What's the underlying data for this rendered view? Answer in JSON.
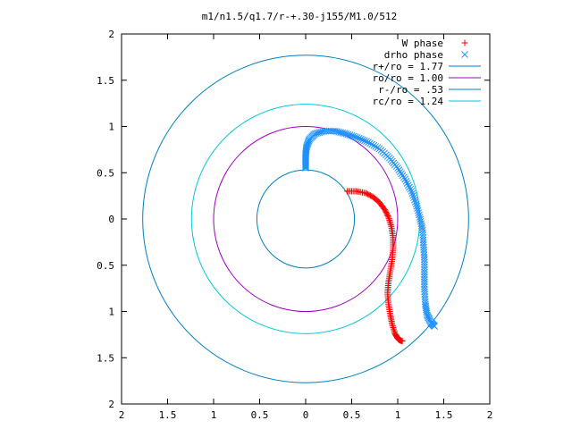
{
  "chart_data": {
    "type": "scatter",
    "title": "m1/n1.5/q1.7/r-+.30-j155/M1.0/512",
    "xlabel": "",
    "ylabel": "",
    "xlim": [
      -2,
      2
    ],
    "ylim": [
      -2,
      2
    ],
    "x_reversed": true,
    "y_ticks_show_abs": true,
    "x_ticks": [
      -2,
      -1.5,
      -1,
      -0.5,
      0,
      0.5,
      1,
      1.5,
      2
    ],
    "x_tick_labels": [
      "2",
      "1.5",
      "1",
      "0.5",
      "0",
      "0.5",
      "1",
      "1.5",
      "2"
    ],
    "y_ticks": [
      2,
      1.5,
      1,
      0.5,
      0,
      -0.5,
      -1,
      -1.5,
      -2
    ],
    "y_tick_labels": [
      "2",
      "1.5",
      "1",
      "0.5",
      "0",
      "0.5",
      "1",
      "1.5",
      "2"
    ],
    "grid": false,
    "legend_position": "top-right",
    "colors": {
      "w_phase": "#ff0000",
      "drho_phase": "#1e90ff",
      "rplus": "#0080c0",
      "ro": "#a000c0",
      "rminus": "#0080c0",
      "rc": "#00c8d8"
    },
    "series": [
      {
        "name": "W phase",
        "kind": "points",
        "marker": "plus",
        "points": [
          [
            -0.45,
            0.3
          ],
          [
            -0.55,
            0.3
          ],
          [
            -0.65,
            0.28
          ],
          [
            -0.73,
            0.24
          ],
          [
            -0.8,
            0.18
          ],
          [
            -0.86,
            0.1
          ],
          [
            -0.9,
            0.02
          ],
          [
            -0.93,
            -0.08
          ],
          [
            -0.95,
            -0.2
          ],
          [
            -0.95,
            -0.32
          ],
          [
            -0.94,
            -0.44
          ],
          [
            -0.92,
            -0.56
          ],
          [
            -0.9,
            -0.68
          ],
          [
            -0.89,
            -0.8
          ],
          [
            -0.9,
            -0.92
          ],
          [
            -0.92,
            -1.04
          ],
          [
            -0.94,
            -1.14
          ],
          [
            -0.97,
            -1.24
          ],
          [
            -1.0,
            -1.29
          ],
          [
            -1.02,
            -1.31
          ],
          [
            -1.05,
            -1.32
          ]
        ]
      },
      {
        "name": "drho phase",
        "kind": "points",
        "marker": "cross",
        "points": [
          [
            0.0,
            0.55
          ],
          [
            0.0,
            0.62
          ],
          [
            0.0,
            0.7
          ],
          [
            -0.01,
            0.78
          ],
          [
            -0.04,
            0.86
          ],
          [
            -0.1,
            0.92
          ],
          [
            -0.2,
            0.95
          ],
          [
            -0.32,
            0.95
          ],
          [
            -0.44,
            0.92
          ],
          [
            -0.56,
            0.88
          ],
          [
            -0.68,
            0.83
          ],
          [
            -0.8,
            0.76
          ],
          [
            -0.91,
            0.66
          ],
          [
            -1.0,
            0.55
          ],
          [
            -1.08,
            0.43
          ],
          [
            -1.15,
            0.3
          ],
          [
            -1.2,
            0.16
          ],
          [
            -1.24,
            0.02
          ],
          [
            -1.27,
            -0.12
          ],
          [
            -1.28,
            -0.28
          ],
          [
            -1.29,
            -0.44
          ],
          [
            -1.29,
            -0.6
          ],
          [
            -1.29,
            -0.76
          ],
          [
            -1.3,
            -0.92
          ],
          [
            -1.32,
            -1.04
          ],
          [
            -1.36,
            -1.12
          ],
          [
            -1.4,
            -1.16
          ]
        ]
      },
      {
        "name": "r+/ro = 1.77",
        "kind": "circle",
        "radius": 1.77,
        "color_key": "rplus"
      },
      {
        "name": "ro/ro = 1.00",
        "kind": "circle",
        "radius": 1.0,
        "color_key": "ro"
      },
      {
        "name": "r-/ro = .53",
        "kind": "circle",
        "radius": 0.53,
        "color_key": "rminus"
      },
      {
        "name": "rc/ro = 1.24",
        "kind": "circle",
        "radius": 1.24,
        "color_key": "rc"
      }
    ]
  }
}
